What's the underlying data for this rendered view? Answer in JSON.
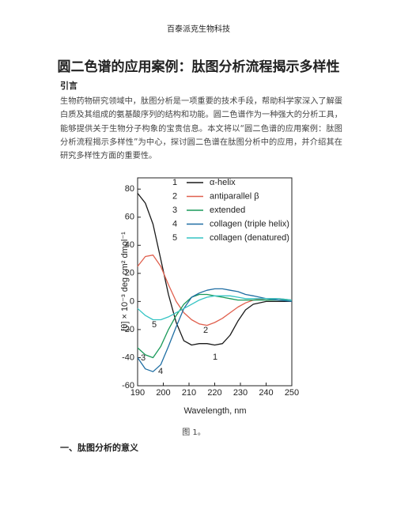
{
  "header": "百泰派克生物科技",
  "title": "圆二色谱的应用案例：肽图分析流程揭示多样性",
  "intro_heading": "引言",
  "intro_paragraph": "生物药物研究领域中，肽图分析是一项重要的技术手段，帮助科学家深入了解蛋白质及其组成的氨基酸序列的结构和功能。圆二色谱作为一种强大的分析工具，能够提供关于生物分子构象的宝贵信息。本文将以“圆二色谱的应用案例：肽图分析流程揭示多样性”为中心，探讨圆二色谱在肽图分析中的应用，并介绍其在研究多样性方面的重要性。",
  "chart_data": {
    "type": "line",
    "x_label": "Wavelength, nm",
    "y_label": "[θ] × 10⁻³ deg cm² dmol⁻¹",
    "x": [
      190,
      193,
      196,
      199,
      202,
      205,
      208,
      211,
      214,
      217,
      220,
      223,
      226,
      229,
      232,
      235,
      240,
      245,
      250
    ],
    "series": [
      {
        "tag": "1",
        "name": "α-helix",
        "color": "#1a1a1a",
        "values": [
          77,
          70,
          55,
          30,
          5,
          -15,
          -28,
          -31,
          -30,
          -30,
          -31,
          -30,
          -24,
          -14,
          -6,
          -2,
          0,
          0,
          0
        ]
      },
      {
        "tag": "2",
        "name": "antiparallel β",
        "color": "#e0604e",
        "values": [
          25,
          32,
          33,
          25,
          12,
          0,
          -8,
          -13,
          -16,
          -17,
          -15,
          -12,
          -8,
          -4,
          -1,
          1,
          2,
          2,
          1
        ]
      },
      {
        "tag": "3",
        "name": "extended",
        "color": "#1a9a5a",
        "values": [
          -33,
          -38,
          -40,
          -32,
          -20,
          -10,
          -2,
          3,
          5,
          5,
          4,
          3,
          2,
          1,
          1,
          1,
          1,
          1,
          1
        ]
      },
      {
        "tag": "4",
        "name": "collagen (triple helix)",
        "color": "#1f6ea3",
        "values": [
          -40,
          -48,
          -50,
          -45,
          -32,
          -18,
          -5,
          3,
          6,
          8,
          9,
          9,
          8,
          7,
          5,
          4,
          2,
          1,
          0
        ]
      },
      {
        "tag": "5",
        "name": "collagen (denatured)",
        "color": "#35c4c4",
        "values": [
          -5,
          -10,
          -13,
          -13,
          -11,
          -8,
          -5,
          -2,
          1,
          3,
          4,
          4,
          4,
          3,
          2,
          2,
          2,
          2,
          1
        ]
      }
    ],
    "xlim": [
      190,
      250
    ],
    "xticks": [
      190,
      200,
      210,
      220,
      230,
      240,
      250
    ],
    "ylim": [
      -60,
      88
    ],
    "yticks": [
      -60,
      -40,
      -20,
      0,
      20,
      40,
      60,
      80
    ]
  },
  "caption": "图 1。",
  "section_heading": "一、肽图分析的意义"
}
